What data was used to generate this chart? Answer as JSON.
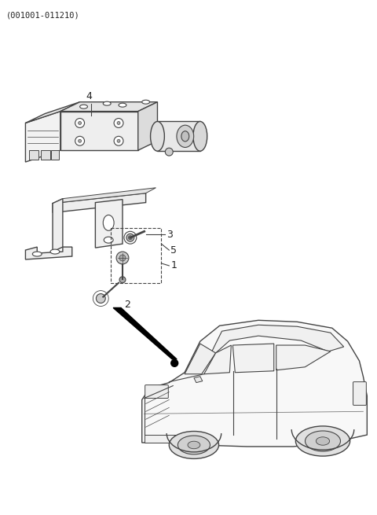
{
  "title": "(001001-011210)",
  "background_color": "#ffffff",
  "line_color": "#444444",
  "text_color": "#222222",
  "figsize": [
    4.8,
    6.55
  ],
  "dpi": 100,
  "module_color": "#f0f0f0",
  "car_color": "#f8f8f8"
}
